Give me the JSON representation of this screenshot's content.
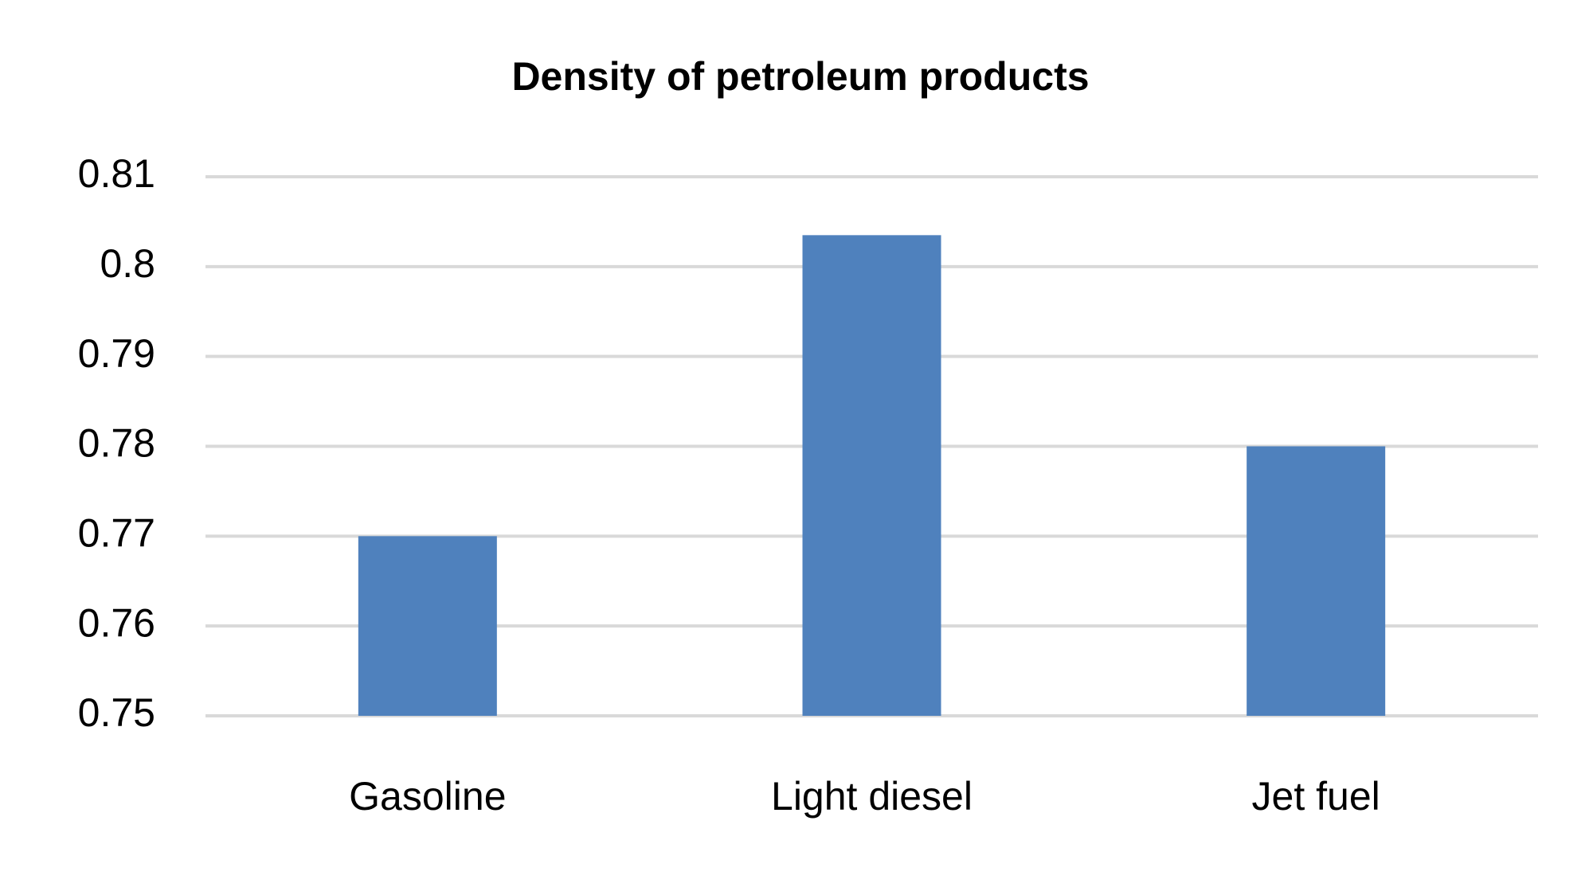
{
  "chart_data": {
    "type": "bar",
    "title": "Density of petroleum products",
    "categories": [
      "Gasoline",
      "Light diesel",
      "Jet fuel"
    ],
    "values": [
      0.77,
      0.8035,
      0.78
    ],
    "color": "#4f81bd",
    "ylim": [
      0.75,
      0.81
    ],
    "yticks": [
      0.75,
      0.76,
      0.77,
      0.78,
      0.79,
      0.8,
      0.81
    ],
    "grid": true
  }
}
